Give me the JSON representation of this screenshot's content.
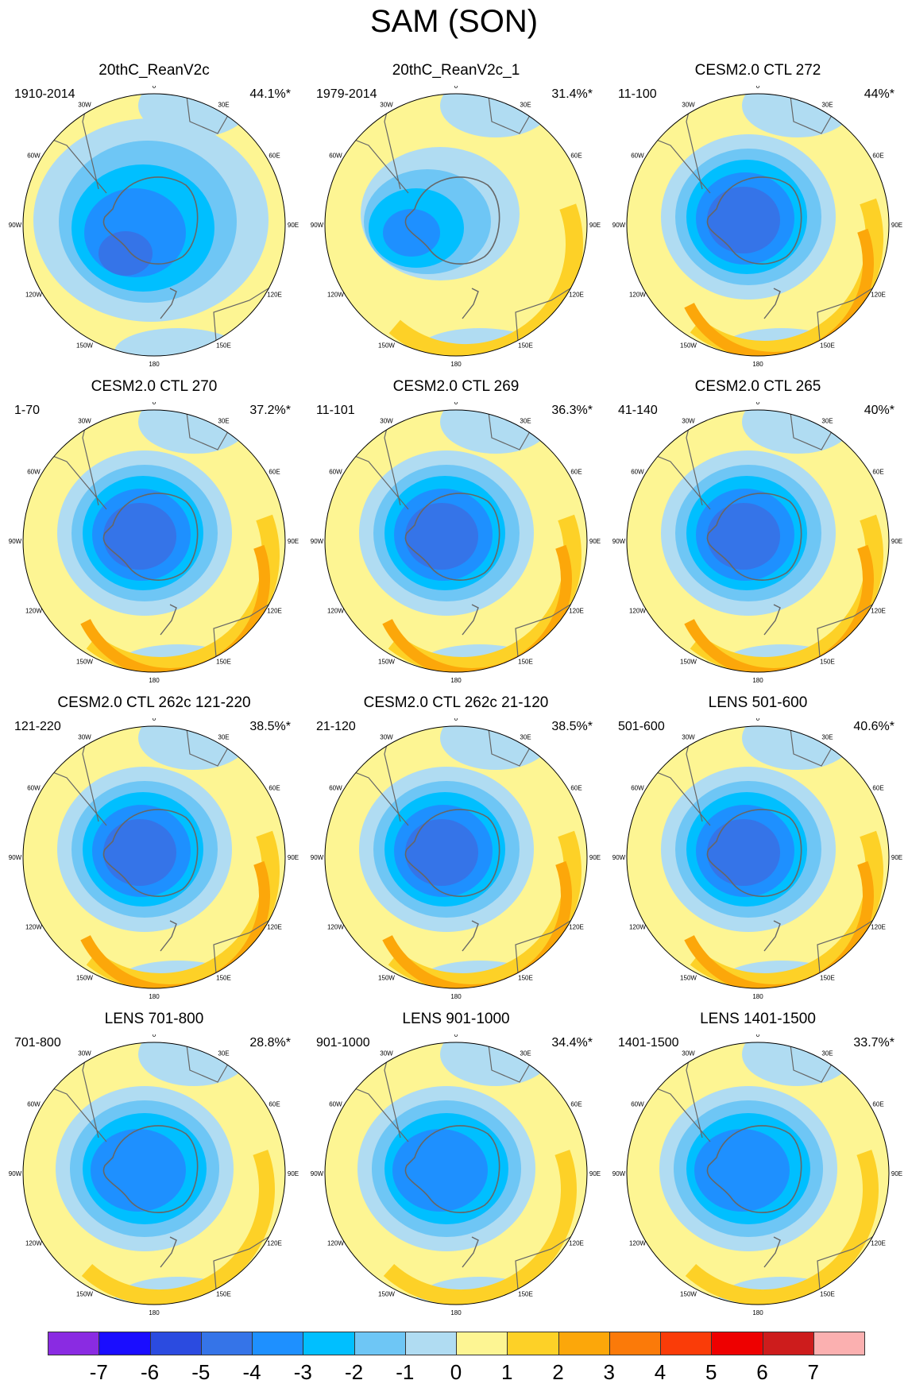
{
  "figure": {
    "title": "SAM (SON)"
  },
  "panels": [
    {
      "title": "20thC_ReanV2c",
      "period": "1910-2014",
      "variance": "44.1%*",
      "pattern": "rean"
    },
    {
      "title": "20thC_ReanV2c_1",
      "period": "1979-2014",
      "variance": "31.4%*",
      "pattern": "rean1"
    },
    {
      "title": "CESM2.0 CTL 272",
      "period": "11-100",
      "variance": "44%*",
      "pattern": "model"
    },
    {
      "title": "CESM2.0 CTL 270",
      "period": "1-70",
      "variance": "37.2%*",
      "pattern": "model"
    },
    {
      "title": "CESM2.0 CTL 269",
      "period": "11-101",
      "variance": "36.3%*",
      "pattern": "model"
    },
    {
      "title": "CESM2.0 CTL 265",
      "period": "41-140",
      "variance": "40%*",
      "pattern": "model"
    },
    {
      "title": "CESM2.0 CTL 262c 121-220",
      "period": "121-220",
      "variance": "38.5%*",
      "pattern": "model"
    },
    {
      "title": "CESM2.0 CTL 262c 21-120",
      "period": "21-120",
      "variance": "38.5%*",
      "pattern": "model"
    },
    {
      "title": "LENS 501-600",
      "period": "501-600",
      "variance": "40.6%*",
      "pattern": "model"
    },
    {
      "title": "LENS 701-800",
      "period": "701-800",
      "variance": "28.8%*",
      "pattern": "lens"
    },
    {
      "title": "LENS 901-1000",
      "period": "901-1000",
      "variance": "34.4%*",
      "pattern": "lens"
    },
    {
      "title": "LENS 1401-1500",
      "period": "1401-1500",
      "variance": "33.7%*",
      "pattern": "lens"
    }
  ],
  "longitude_labels": [
    "0",
    "30E",
    "60E",
    "90E",
    "120E",
    "150E",
    "180",
    "150W",
    "120W",
    "90W",
    "60W",
    "30W"
  ],
  "colorbar": {
    "ticks": [
      "-7",
      "-6",
      "-5",
      "-4",
      "-3",
      "-2",
      "-1",
      "0",
      "1",
      "2",
      "3",
      "4",
      "5",
      "6",
      "7"
    ],
    "colors": [
      "#8a2be2",
      "#1a0dff",
      "#2b4be0",
      "#3574e8",
      "#1e90ff",
      "#00bfff",
      "#6ec6f5",
      "#b0dcf2",
      "#fdf593",
      "#fdd127",
      "#fca70a",
      "#fb7a09",
      "#fa3c08",
      "#ee0000",
      "#cd1c1c",
      "#fbb0b0"
    ]
  }
}
